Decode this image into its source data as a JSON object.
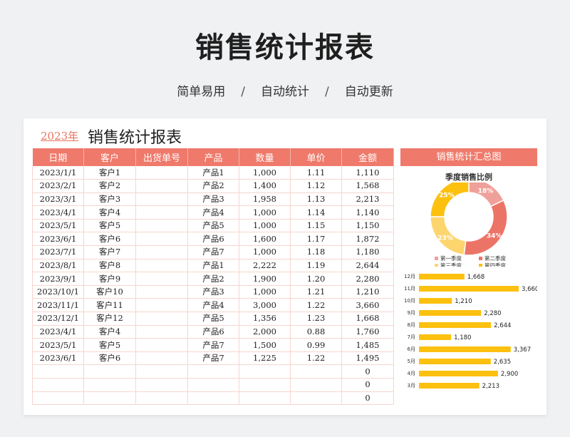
{
  "header": {
    "title": "销售统计报表",
    "features": [
      "简单易用",
      "自动统计",
      "自动更新"
    ],
    "separator": "/"
  },
  "sheet": {
    "year": "2023年",
    "title": "销售统计报表",
    "columns": [
      "日期",
      "客户",
      "出货单号",
      "产品",
      "数量",
      "单价",
      "金额"
    ],
    "rows": [
      [
        "2023/1/1",
        "客户1",
        "",
        "产品1",
        "1,000",
        "1.11",
        "1,110"
      ],
      [
        "2023/2/1",
        "客户2",
        "",
        "产品2",
        "1,400",
        "1.12",
        "1,568"
      ],
      [
        "2023/3/1",
        "客户3",
        "",
        "产品3",
        "1,958",
        "1.13",
        "2,213"
      ],
      [
        "2023/4/1",
        "客户4",
        "",
        "产品4",
        "1,000",
        "1.14",
        "1,140"
      ],
      [
        "2023/5/1",
        "客户5",
        "",
        "产品5",
        "1,000",
        "1.15",
        "1,150"
      ],
      [
        "2023/6/1",
        "客户6",
        "",
        "产品6",
        "1,600",
        "1.17",
        "1,872"
      ],
      [
        "2023/7/1",
        "客户7",
        "",
        "产品7",
        "1,000",
        "1.18",
        "1,180"
      ],
      [
        "2023/8/1",
        "客户8",
        "",
        "产品1",
        "2,222",
        "1.19",
        "2,644"
      ],
      [
        "2023/9/1",
        "客户9",
        "",
        "产品2",
        "1,900",
        "1.20",
        "2,280"
      ],
      [
        "2023/10/1",
        "客户10",
        "",
        "产品3",
        "1,000",
        "1.21",
        "1,210"
      ],
      [
        "2023/11/1",
        "客户11",
        "",
        "产品4",
        "3,000",
        "1.22",
        "3,660"
      ],
      [
        "2023/12/1",
        "客户12",
        "",
        "产品5",
        "1,356",
        "1.23",
        "1,668"
      ],
      [
        "2023/4/1",
        "客户4",
        "",
        "产品6",
        "2,000",
        "0.88",
        "1,760"
      ],
      [
        "2023/5/1",
        "客户5",
        "",
        "产品7",
        "1,500",
        "0.99",
        "1,485"
      ],
      [
        "2023/6/1",
        "客户6",
        "",
        "产品7",
        "1,225",
        "1.22",
        "1,495"
      ],
      [
        "",
        "",
        "",
        "",
        "",
        "",
        "0"
      ],
      [
        "",
        "",
        "",
        "",
        "",
        "",
        "0"
      ],
      [
        "",
        "",
        "",
        "",
        "",
        "",
        "0"
      ]
    ]
  },
  "panel": {
    "header": "销售统计汇总图"
  },
  "chart_data": [
    {
      "type": "pie",
      "title": "季度销售比例",
      "categories": [
        "第一季度",
        "第二季度",
        "第三季度",
        "第四季度"
      ],
      "values": [
        18,
        34,
        23,
        25
      ],
      "labels": [
        "18%",
        "34%",
        "23%",
        "25%"
      ],
      "colors": [
        "#f0a09a",
        "#ec7467",
        "#fdd56e",
        "#fcc00f"
      ],
      "legend": "bottom"
    },
    {
      "type": "bar",
      "orientation": "horizontal",
      "categories": [
        "12月",
        "11月",
        "10月",
        "9月",
        "8月",
        "7月",
        "6月",
        "5月",
        "4月",
        "3月"
      ],
      "values": [
        1668,
        3660,
        1210,
        2280,
        2644,
        1180,
        3367,
        2635,
        2900,
        2213
      ],
      "value_labels": [
        "1,668",
        "3,660",
        "1,210",
        "2,280",
        "2,644",
        "1,180",
        "3,367",
        "2,635",
        "2,900",
        "2,213"
      ],
      "color": "#fcc00f",
      "xlim": [
        0,
        3660
      ]
    }
  ]
}
